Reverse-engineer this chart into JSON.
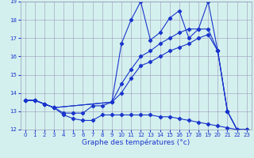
{
  "xlabel": "Graphe des températures (°c)",
  "xlim": [
    -0.5,
    23.5
  ],
  "ylim": [
    12,
    19
  ],
  "xticks": [
    0,
    1,
    2,
    3,
    4,
    5,
    6,
    7,
    8,
    9,
    10,
    11,
    12,
    13,
    14,
    15,
    16,
    17,
    18,
    19,
    20,
    21,
    22,
    23
  ],
  "yticks": [
    12,
    13,
    14,
    15,
    16,
    17,
    18,
    19
  ],
  "background_color": "#d4f0ee",
  "line_color": "#1a35cc",
  "grid_color": "#9999bb",
  "series": {
    "line1_x": [
      0,
      1,
      2,
      3,
      4,
      5,
      6,
      7,
      8,
      9,
      10,
      11,
      12,
      13,
      14,
      15,
      16,
      17,
      18,
      19,
      20,
      21,
      22,
      23
    ],
    "line1_y": [
      13.6,
      13.6,
      13.4,
      13.2,
      12.8,
      12.6,
      12.5,
      12.5,
      12.8,
      12.8,
      12.8,
      12.8,
      12.8,
      12.8,
      12.7,
      12.7,
      12.6,
      12.5,
      12.4,
      12.3,
      12.2,
      12.1,
      12.0,
      12.0
    ],
    "line2_x": [
      0,
      1,
      2,
      3,
      4,
      5,
      6,
      7,
      8,
      9,
      10,
      11,
      12,
      13,
      14,
      15,
      16,
      17,
      18,
      19,
      20,
      21,
      22,
      23
    ],
    "line2_y": [
      13.6,
      13.6,
      13.4,
      13.2,
      12.9,
      12.9,
      12.9,
      13.3,
      13.3,
      13.5,
      16.7,
      18.0,
      19.0,
      16.9,
      17.3,
      18.1,
      18.5,
      17.0,
      17.5,
      19.0,
      16.3,
      13.0,
      12.0,
      12.0
    ],
    "line3_x": [
      0,
      1,
      2,
      3,
      9,
      10,
      11,
      12,
      13,
      14,
      15,
      16,
      17,
      18,
      19,
      20,
      21,
      22,
      23
    ],
    "line3_y": [
      13.6,
      13.6,
      13.4,
      13.2,
      13.5,
      14.5,
      15.3,
      16.0,
      16.3,
      16.7,
      17.0,
      17.3,
      17.5,
      17.5,
      17.5,
      16.3,
      13.0,
      12.0,
      12.0
    ],
    "line4_x": [
      0,
      1,
      2,
      3,
      9,
      10,
      11,
      12,
      13,
      14,
      15,
      16,
      17,
      18,
      19,
      20,
      21,
      22,
      23
    ],
    "line4_y": [
      13.6,
      13.6,
      13.4,
      13.2,
      13.5,
      14.0,
      14.8,
      15.5,
      15.7,
      16.0,
      16.3,
      16.5,
      16.7,
      17.0,
      17.2,
      16.3,
      13.0,
      12.0,
      12.0
    ]
  }
}
